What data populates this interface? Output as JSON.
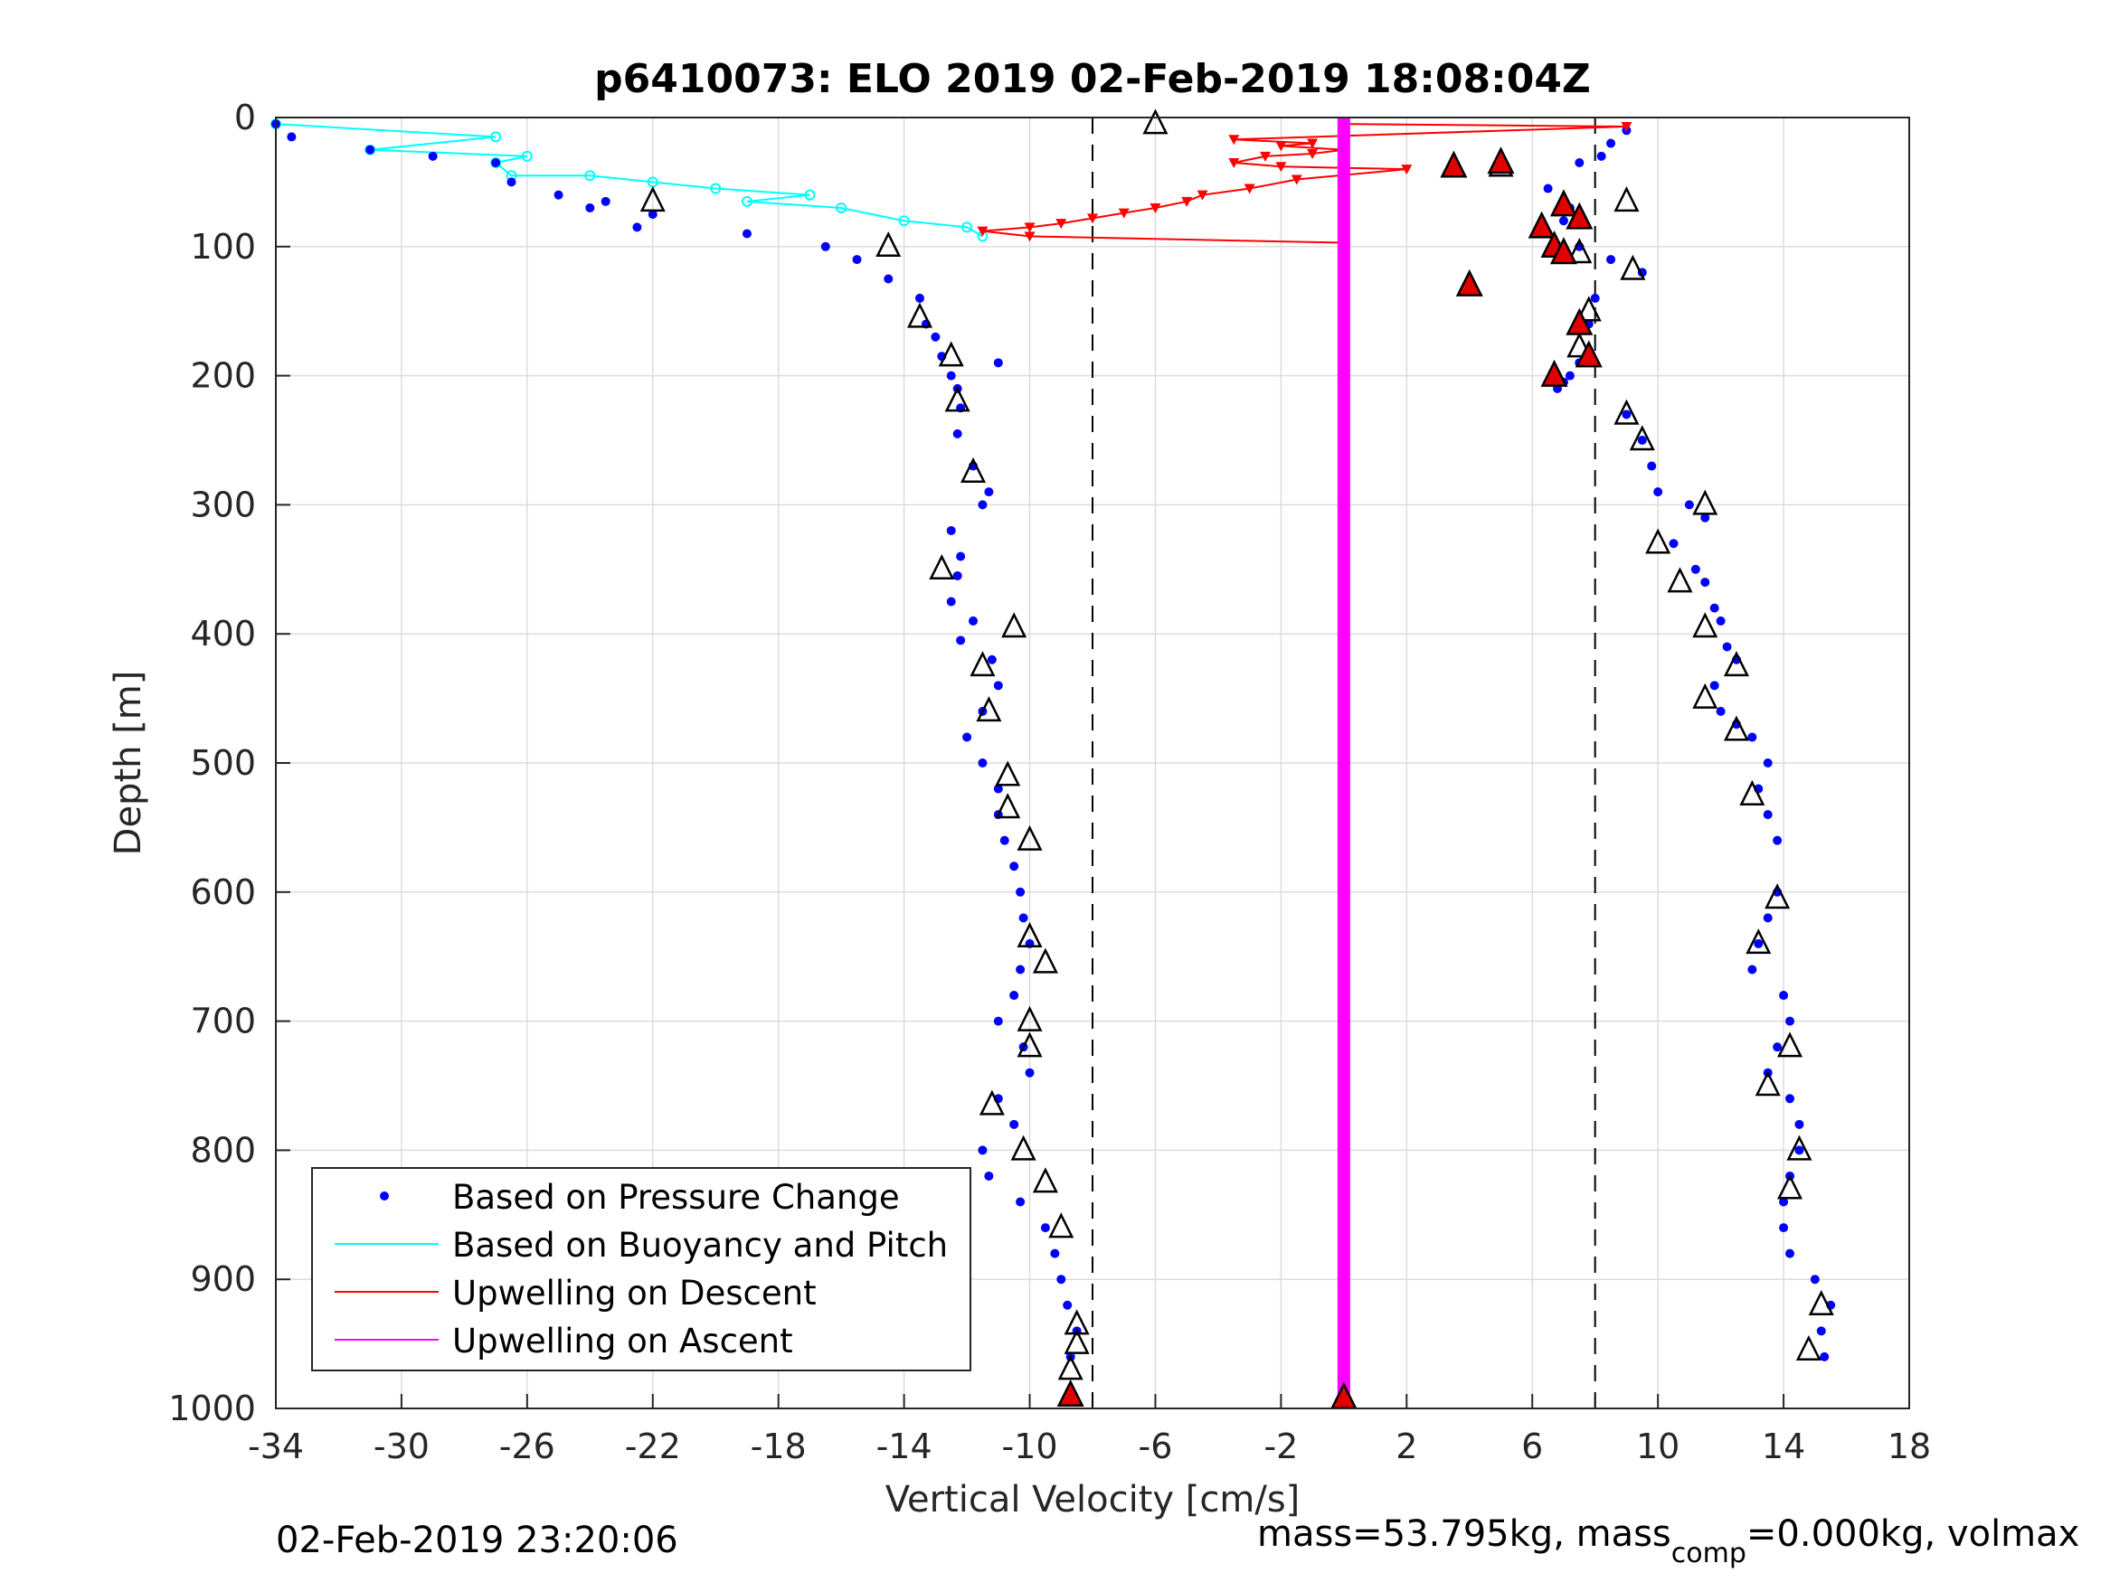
{
  "chart_data": {
    "type": "scatter",
    "title": "p6410073: ELO 2019 02-Feb-2019 18:08:04Z",
    "xlabel": "Vertical Velocity [cm/s]",
    "ylabel": "Depth [m]",
    "xlim": [
      -34,
      18
    ],
    "ylim": [
      0,
      1000
    ],
    "y_reversed": true,
    "grid": true,
    "xticks": [
      "-34",
      "-30",
      "-26",
      "-22",
      "-18",
      "-14",
      "-10",
      "-6",
      "-2",
      "2",
      "6",
      "10",
      "14",
      "18"
    ],
    "yticks": [
      "0",
      "100",
      "200",
      "300",
      "400",
      "500",
      "600",
      "700",
      "800",
      "900",
      "1000"
    ],
    "dashed_lines_x": [
      -8,
      8
    ],
    "legend": {
      "placement": "bottom-left",
      "entries": [
        {
          "label": "Based on Pressure Change",
          "color": "#0000ff",
          "marker": "dot"
        },
        {
          "label": "Based on Buoyancy and Pitch",
          "color": "#00ffff",
          "marker": "line"
        },
        {
          "label": "Upwelling on Descent",
          "color": "#ff0000",
          "marker": "line"
        },
        {
          "label": "Upwelling on Ascent",
          "color": "#ff00ff",
          "marker": "line"
        }
      ]
    },
    "series": [
      {
        "name": "Based on Pressure Change",
        "color": "#0000ff",
        "descent_profile": {
          "x": [
            -34,
            -33.5,
            -31,
            -29,
            -27,
            -26.5,
            -25,
            -24,
            -23.5,
            -22,
            -22.5,
            -19,
            -16.5,
            -15.5,
            -14.5,
            -13.5,
            -13.3,
            -13,
            -12.8,
            -12.5,
            -12.3,
            -12.2,
            -11,
            -12.3,
            -11.8,
            -11.3,
            -11.5,
            -12.5,
            -12.2,
            -12.3,
            -12.5,
            -11.8,
            -12.2,
            -11.2,
            -11,
            -11.5,
            -12,
            -11.5,
            -11,
            -11,
            -10.8,
            -10.5,
            -10.3,
            -10.2,
            -10,
            -10.3,
            -10.5,
            -11,
            -10.2,
            -10,
            -11,
            -10.5,
            -11.5,
            -11.3,
            -10.3,
            -9.5,
            -9.2,
            -9,
            -8.8,
            -8.5,
            -8.7,
            -8.7
          ],
          "y": [
            5,
            15,
            25,
            30,
            35,
            50,
            60,
            70,
            65,
            75,
            85,
            90,
            100,
            110,
            125,
            140,
            160,
            170,
            185,
            200,
            210,
            225,
            190,
            245,
            270,
            290,
            300,
            320,
            340,
            355,
            375,
            390,
            405,
            420,
            440,
            460,
            480,
            500,
            520,
            540,
            560,
            580,
            600,
            620,
            640,
            660,
            680,
            700,
            720,
            740,
            760,
            780,
            800,
            820,
            840,
            860,
            880,
            900,
            920,
            940,
            960,
            990
          ]
        },
        "ascent_profile": {
          "x": [
            9,
            8.5,
            8.2,
            7.5,
            5,
            6.5,
            7.2,
            7,
            6.5,
            7.5,
            8.5,
            9.5,
            8,
            7.8,
            7.8,
            7.5,
            7.2,
            6.8,
            7,
            9,
            9.5,
            9.8,
            10,
            11,
            11.5,
            10.5,
            11.2,
            11.5,
            11.8,
            12,
            12.2,
            12.5,
            11.8,
            12,
            12.5,
            13,
            13.5,
            13.2,
            13.5,
            13.8,
            13.8,
            13.5,
            13.2,
            13,
            14,
            14.2,
            13.8,
            13.5,
            14.2,
            14.5,
            14.5,
            14.2,
            14,
            14,
            14.2,
            15,
            15.5,
            15.2,
            15.3
          ],
          "y": [
            10,
            20,
            30,
            35,
            40,
            55,
            70,
            80,
            90,
            100,
            110,
            120,
            140,
            160,
            180,
            190,
            200,
            210,
            205,
            230,
            250,
            270,
            290,
            300,
            310,
            330,
            350,
            360,
            380,
            390,
            410,
            420,
            440,
            460,
            470,
            480,
            500,
            520,
            540,
            560,
            600,
            620,
            640,
            660,
            680,
            700,
            720,
            740,
            760,
            780,
            800,
            820,
            840,
            860,
            880,
            900,
            920,
            940,
            960
          ]
        }
      },
      {
        "name": "Based on Buoyancy and Pitch",
        "color": "#00ffff",
        "x": [
          -34,
          -27,
          -31,
          -26,
          -27,
          -26.5,
          -24,
          -22,
          -20,
          -17,
          -19,
          -16,
          -14,
          -12,
          -11.5
        ],
        "y": [
          5,
          15,
          25,
          30,
          35,
          45,
          45,
          50,
          55,
          60,
          65,
          70,
          80,
          85,
          92
        ]
      },
      {
        "name": "Upwelling on Descent",
        "color": "#ff0000",
        "x": [
          0,
          9,
          -3.5,
          -1,
          -2,
          0,
          -1,
          -2.5,
          -3.5,
          -2,
          2,
          -1.5,
          -3,
          -4.5,
          -5,
          -6,
          -7,
          -8,
          -9,
          -10,
          -11.5,
          -10,
          0
        ],
        "y": [
          5,
          7,
          17,
          20,
          22,
          25,
          28,
          30,
          35,
          38,
          40,
          48,
          55,
          60,
          65,
          70,
          74,
          78,
          82,
          85,
          88,
          92,
          97
        ]
      },
      {
        "name": "Upwelling on Ascent",
        "color": "#ff00ff",
        "x": [
          0,
          0
        ],
        "y": [
          0,
          1000
        ]
      }
    ],
    "markers": {
      "open_triangles": [
        {
          "x": -6,
          "y": 5
        },
        {
          "x": -22,
          "y": 65
        },
        {
          "x": -14.5,
          "y": 100
        },
        {
          "x": -13.5,
          "y": 155
        },
        {
          "x": -12.5,
          "y": 185
        },
        {
          "x": -12.3,
          "y": 220
        },
        {
          "x": -11.8,
          "y": 275
        },
        {
          "x": -12.8,
          "y": 350
        },
        {
          "x": -10.5,
          "y": 395
        },
        {
          "x": -11.5,
          "y": 425
        },
        {
          "x": -11.3,
          "y": 460
        },
        {
          "x": -10.7,
          "y": 510
        },
        {
          "x": -10.7,
          "y": 535
        },
        {
          "x": -10,
          "y": 560
        },
        {
          "x": -10,
          "y": 635
        },
        {
          "x": -9.5,
          "y": 655
        },
        {
          "x": -10,
          "y": 700
        },
        {
          "x": -10,
          "y": 720
        },
        {
          "x": -11.2,
          "y": 765
        },
        {
          "x": -10.2,
          "y": 800
        },
        {
          "x": -9.5,
          "y": 825
        },
        {
          "x": -9,
          "y": 860
        },
        {
          "x": -8.5,
          "y": 935
        },
        {
          "x": -8.5,
          "y": 950
        },
        {
          "x": -8.7,
          "y": 970
        },
        {
          "x": 5,
          "y": 38
        },
        {
          "x": 9,
          "y": 65
        },
        {
          "x": 7.5,
          "y": 105
        },
        {
          "x": 9.2,
          "y": 118
        },
        {
          "x": 7.8,
          "y": 150
        },
        {
          "x": 7.5,
          "y": 178
        },
        {
          "x": 9,
          "y": 230
        },
        {
          "x": 9.5,
          "y": 250
        },
        {
          "x": 11.5,
          "y": 300
        },
        {
          "x": 10,
          "y": 330
        },
        {
          "x": 10.7,
          "y": 360
        },
        {
          "x": 11.5,
          "y": 395
        },
        {
          "x": 12.5,
          "y": 425
        },
        {
          "x": 11.5,
          "y": 450
        },
        {
          "x": 12.5,
          "y": 475
        },
        {
          "x": 13,
          "y": 525
        },
        {
          "x": 13.8,
          "y": 605
        },
        {
          "x": 13.2,
          "y": 640
        },
        {
          "x": 14.2,
          "y": 720
        },
        {
          "x": 13.5,
          "y": 750
        },
        {
          "x": 14.5,
          "y": 800
        },
        {
          "x": 14.2,
          "y": 830
        },
        {
          "x": 15.2,
          "y": 920
        },
        {
          "x": 14.8,
          "y": 955
        }
      ],
      "red_filled_triangles": [
        {
          "x": 3.5,
          "y": 38
        },
        {
          "x": 5,
          "y": 35
        },
        {
          "x": 7,
          "y": 68
        },
        {
          "x": 6.3,
          "y": 85
        },
        {
          "x": 7.5,
          "y": 78
        },
        {
          "x": 6.7,
          "y": 100
        },
        {
          "x": 7,
          "y": 105
        },
        {
          "x": 4,
          "y": 130
        },
        {
          "x": 7.5,
          "y": 160
        },
        {
          "x": 7.8,
          "y": 185
        },
        {
          "x": 6.7,
          "y": 200
        },
        {
          "x": -8.7,
          "y": 990
        },
        {
          "x": 0,
          "y": 992
        }
      ]
    }
  },
  "footer": {
    "timestamp": "02-Feb-2019 23:20:06",
    "mass_prefix": "mass=53.795kg, mass",
    "mass_sub": "comp",
    "mass_suffix": "=0.000kg, volmax"
  }
}
